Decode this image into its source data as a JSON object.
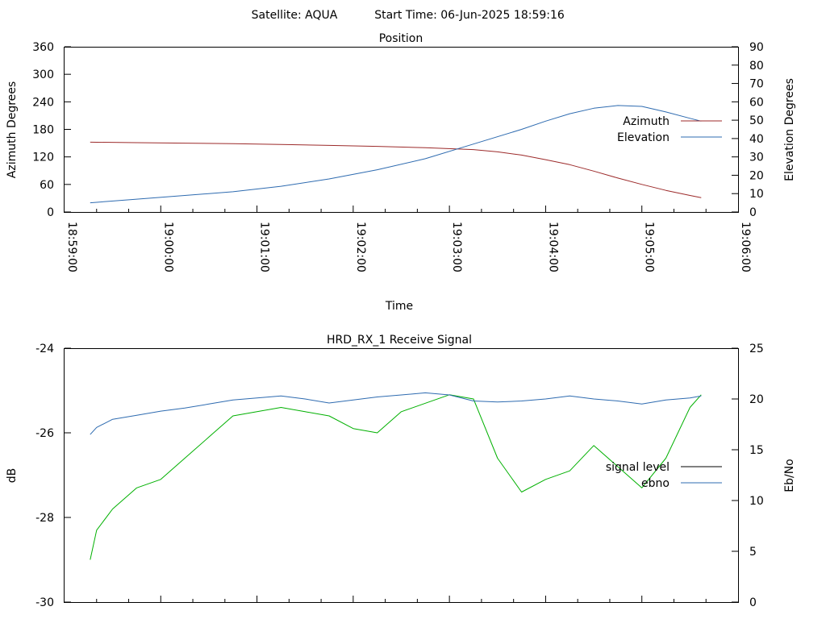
{
  "header": {
    "satellite": "Satellite: AQUA",
    "start_time": "Start Time: 06-Jun-2025 18:59:16"
  },
  "colors": {
    "azimuth": "#9c2a2a",
    "elevation": "#2e6bb0",
    "signal_level": "#000000",
    "ebno": "#2e6bb0",
    "signal_trace": "#00b000"
  },
  "chart_data": [
    {
      "type": "line",
      "title": "Position",
      "xlabel": "Time",
      "ylabel": "Azimuth Degrees",
      "y2label": "Elevation Degrees",
      "xlim": [
        "18:59:00",
        "19:06:00"
      ],
      "ylim": [
        0,
        360
      ],
      "y2lim": [
        0,
        90
      ],
      "xticks": [
        "18:59:00",
        "19:00:00",
        "19:01:00",
        "19:02:00",
        "19:03:00",
        "19:04:00",
        "19:05:00",
        "19:06:00"
      ],
      "yticks": [
        "0",
        "60",
        "120",
        "180",
        "240",
        "300",
        "360"
      ],
      "y2ticks": [
        "0",
        "10",
        "20",
        "30",
        "40",
        "50",
        "60",
        "70",
        "80",
        "90"
      ],
      "legend_position": "top-right",
      "grid": false,
      "series": [
        {
          "name": "Azimuth",
          "axis": "left",
          "x": [
            "18:59:16",
            "18:59:45",
            "19:00:15",
            "19:00:45",
            "19:01:15",
            "19:01:45",
            "19:02:15",
            "19:02:45",
            "19:03:15",
            "19:03:30",
            "19:03:45",
            "19:04:00",
            "19:04:15",
            "19:04:30",
            "19:04:45",
            "19:05:00",
            "19:05:15",
            "19:05:30",
            "19:05:37"
          ],
          "values": [
            152,
            151,
            150,
            149,
            147,
            145,
            143,
            140,
            136,
            131,
            124,
            114,
            103,
            89,
            74,
            60,
            47,
            36,
            31
          ]
        },
        {
          "name": "Elevation",
          "axis": "right",
          "x": [
            "18:59:16",
            "18:59:45",
            "19:00:15",
            "19:00:45",
            "19:01:15",
            "19:01:45",
            "19:02:15",
            "19:02:45",
            "19:03:15",
            "19:03:45",
            "19:04:00",
            "19:04:15",
            "19:04:30",
            "19:04:45",
            "19:05:00",
            "19:05:15",
            "19:05:30",
            "19:05:37"
          ],
          "values": [
            5,
            7,
            9,
            11,
            14,
            18,
            23,
            29,
            37,
            45,
            49.5,
            53.5,
            56.5,
            58,
            57.5,
            54.5,
            51,
            49.5
          ]
        }
      ]
    },
    {
      "type": "line",
      "title": "HRD_RX_1 Receive Signal",
      "xlabel": "",
      "ylabel": "dB",
      "y2label": "Eb/No",
      "xlim": [
        "18:59:00",
        "19:06:00"
      ],
      "ylim": [
        -30,
        -24
      ],
      "y2lim": [
        0,
        25
      ],
      "yticks": [
        "-30",
        "-28",
        "-26",
        "-24"
      ],
      "y2ticks": [
        "0",
        "5",
        "10",
        "15",
        "20",
        "25"
      ],
      "legend_position": "right",
      "grid": false,
      "series": [
        {
          "name": "signal_level",
          "axis": "left",
          "x": [
            "18:59:16",
            "18:59:20",
            "18:59:30",
            "18:59:45",
            "19:00:00",
            "19:00:15",
            "19:00:30",
            "19:00:45",
            "19:01:00",
            "19:01:15",
            "19:01:30",
            "19:01:45",
            "19:02:00",
            "19:02:15",
            "19:02:30",
            "19:02:45",
            "19:03:00",
            "19:03:15",
            "19:03:30",
            "19:03:45",
            "19:04:00",
            "19:04:15",
            "19:04:30",
            "19:04:45",
            "19:05:00",
            "19:05:15",
            "19:05:30",
            "19:05:37"
          ],
          "values": [
            -29,
            -28.3,
            -27.8,
            -27.3,
            -27.1,
            -26.6,
            -26.1,
            -25.6,
            -25.5,
            -25.4,
            -25.5,
            -25.6,
            -25.9,
            -26.0,
            -25.5,
            -25.3,
            -25.1,
            -25.2,
            -26.6,
            -27.4,
            -27.1,
            -26.9,
            -26.3,
            -26.8,
            -27.3,
            -26.6,
            -25.4,
            -25.1
          ]
        },
        {
          "name": "ebno",
          "axis": "right",
          "x": [
            "18:59:16",
            "18:59:20",
            "18:59:30",
            "18:59:45",
            "19:00:00",
            "19:00:15",
            "19:00:30",
            "19:00:45",
            "19:01:00",
            "19:01:15",
            "19:01:30",
            "19:01:45",
            "19:02:00",
            "19:02:15",
            "19:02:30",
            "19:02:45",
            "19:03:00",
            "19:03:15",
            "19:03:30",
            "19:03:45",
            "19:04:00",
            "19:04:15",
            "19:04:30",
            "19:04:45",
            "19:05:00",
            "19:05:15",
            "19:05:30",
            "19:05:37"
          ],
          "values": [
            16.5,
            17.2,
            18.0,
            18.4,
            18.8,
            19.1,
            19.5,
            19.9,
            20.1,
            20.3,
            20.0,
            19.6,
            19.9,
            20.2,
            20.4,
            20.6,
            20.4,
            19.8,
            19.7,
            19.8,
            20.0,
            20.3,
            20.0,
            19.8,
            19.5,
            19.9,
            20.1,
            20.3
          ]
        }
      ]
    }
  ]
}
